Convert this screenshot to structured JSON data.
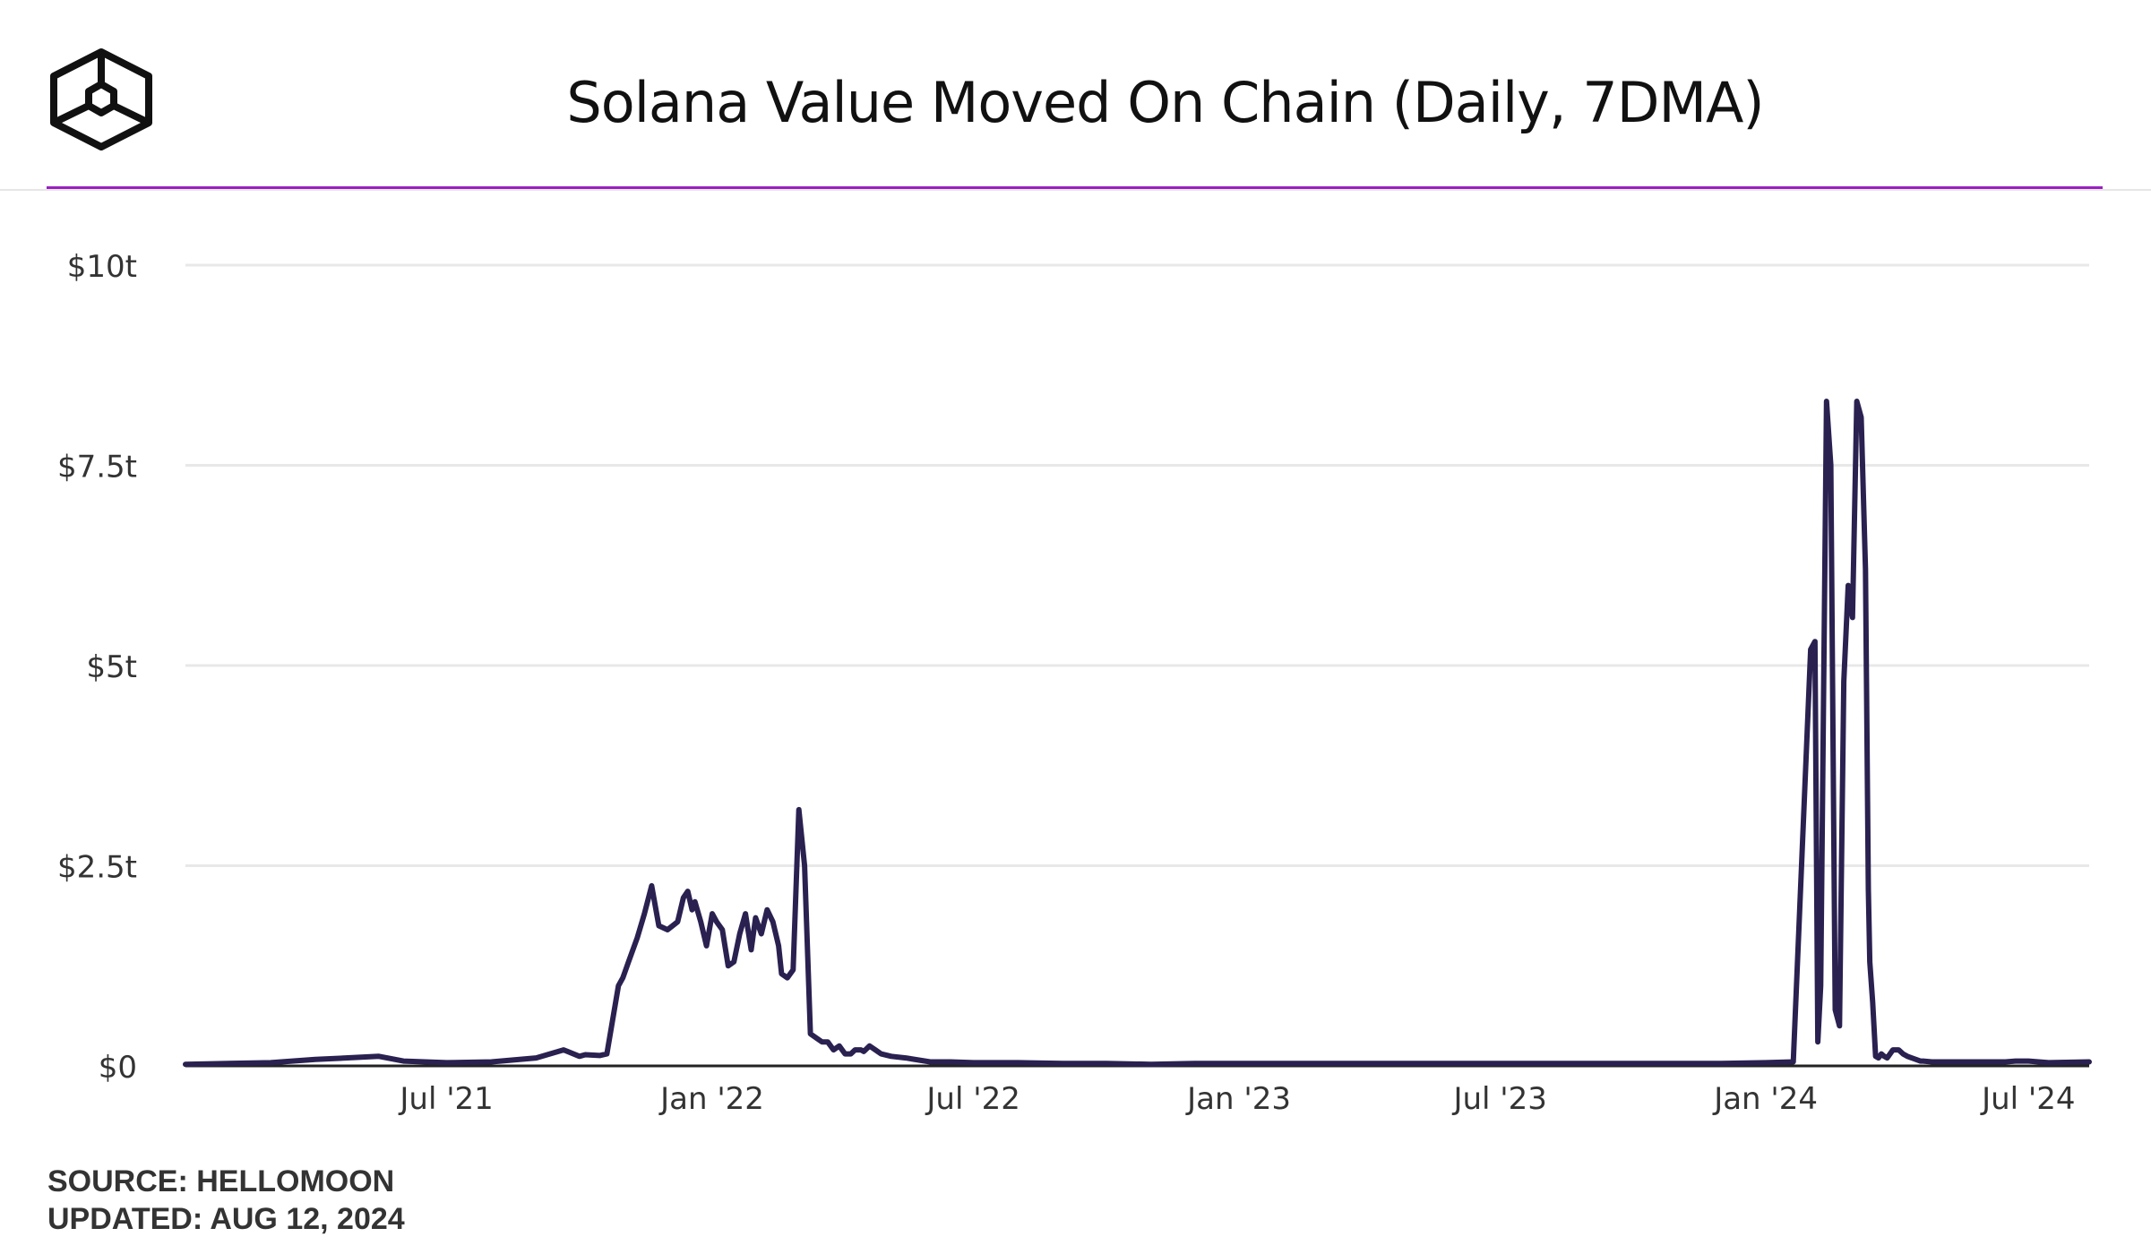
{
  "header": {
    "title": "Solana Value Moved On Chain (Daily, 7DMA)",
    "logo_icon": "cube-logo-icon"
  },
  "footer": {
    "source": "SOURCE: HELLOMOON",
    "updated": "UPDATED: AUG 12, 2024"
  },
  "colors": {
    "accent_line": "#9b1fc4",
    "series": "#2a2150",
    "grid": "#e8e8e8",
    "axis": "#222222",
    "text": "#111111",
    "footer_text": "#333333"
  },
  "chart_data": {
    "type": "line",
    "title": "Solana Value Moved On Chain (Daily, 7DMA)",
    "xlabel": "",
    "ylabel": "",
    "x_range": [
      "2021-01-01",
      "2024-08-12"
    ],
    "ylim": [
      0,
      10
    ],
    "y_unit": "trillion USD",
    "y_ticks": [
      {
        "value": 0,
        "label": "$0"
      },
      {
        "value": 2.5,
        "label": "$2.5t"
      },
      {
        "value": 5,
        "label": "$5t"
      },
      {
        "value": 7.5,
        "label": "$7.5t"
      },
      {
        "value": 10,
        "label": "$10t"
      }
    ],
    "x_ticks": [
      {
        "date": "2021-07-01",
        "label": "Jul '21"
      },
      {
        "date": "2022-01-01",
        "label": "Jan '22"
      },
      {
        "date": "2022-07-01",
        "label": "Jul '22"
      },
      {
        "date": "2023-01-01",
        "label": "Jan '23"
      },
      {
        "date": "2023-07-01",
        "label": "Jul '23"
      },
      {
        "date": "2024-01-01",
        "label": "Jan '24"
      },
      {
        "date": "2024-07-01",
        "label": "Jul '24"
      }
    ],
    "grid": true,
    "legend": "none",
    "series": [
      {
        "x": [
          "2021-01-01",
          "2021-03-01",
          "2021-04-01",
          "2021-05-15",
          "2021-06-01",
          "2021-07-01",
          "2021-08-01",
          "2021-09-01",
          "2021-09-20",
          "2021-10-01",
          "2021-10-05",
          "2021-10-15",
          "2021-10-20",
          "2021-10-28",
          "2021-10-31",
          "2021-11-04",
          "2021-11-10",
          "2021-11-15",
          "2021-11-20",
          "2021-11-25",
          "2021-12-01",
          "2021-12-08",
          "2021-12-12",
          "2021-12-15",
          "2021-12-18",
          "2021-12-20",
          "2021-12-24",
          "2021-12-28",
          "2022-01-01",
          "2022-01-04",
          "2022-01-08",
          "2022-01-12",
          "2022-01-16",
          "2022-01-20",
          "2022-01-24",
          "2022-01-28",
          "2022-01-31",
          "2022-02-04",
          "2022-02-08",
          "2022-02-12",
          "2022-02-16",
          "2022-02-18",
          "2022-02-22",
          "2022-02-26",
          "2022-03-02",
          "2022-03-06",
          "2022-03-10",
          "2022-03-14",
          "2022-03-18",
          "2022-03-22",
          "2022-03-26",
          "2022-03-30",
          "2022-04-03",
          "2022-04-07",
          "2022-04-10",
          "2022-04-14",
          "2022-04-16",
          "2022-04-20",
          "2022-04-24",
          "2022-04-28",
          "2022-05-05",
          "2022-05-15",
          "2022-06-01",
          "2022-06-15",
          "2022-07-01",
          "2022-07-15",
          "2022-08-01",
          "2022-09-01",
          "2022-10-01",
          "2022-11-01",
          "2022-12-01",
          "2023-01-01",
          "2023-07-01",
          "2023-12-01",
          "2024-01-01",
          "2024-01-20",
          "2024-02-01",
          "2024-02-04",
          "2024-02-06",
          "2024-02-08",
          "2024-02-12",
          "2024-02-15",
          "2024-02-18",
          "2024-02-21",
          "2024-02-24",
          "2024-02-27",
          "2024-03-01",
          "2024-03-04",
          "2024-03-07",
          "2024-03-10",
          "2024-03-12",
          "2024-03-13",
          "2024-03-15",
          "2024-03-17",
          "2024-03-19",
          "2024-03-21",
          "2024-03-23",
          "2024-03-25",
          "2024-03-29",
          "2024-04-02",
          "2024-04-05",
          "2024-04-08",
          "2024-04-11",
          "2024-04-14",
          "2024-04-17",
          "2024-04-19",
          "2024-04-25",
          "2024-05-01",
          "2024-05-10",
          "2024-05-20",
          "2024-06-01",
          "2024-06-15",
          "2024-06-22",
          "2024-07-01",
          "2024-07-15",
          "2024-08-12"
        ],
        "y": [
          0.02,
          0.04,
          0.08,
          0.12,
          0.06,
          0.04,
          0.05,
          0.1,
          0.2,
          0.12,
          0.14,
          0.13,
          0.15,
          1.0,
          1.1,
          1.3,
          1.6,
          1.9,
          2.25,
          1.75,
          1.7,
          1.8,
          2.1,
          2.18,
          1.95,
          2.05,
          1.8,
          1.5,
          1.9,
          1.8,
          1.7,
          1.25,
          1.3,
          1.65,
          1.9,
          1.45,
          1.85,
          1.65,
          1.95,
          1.8,
          1.5,
          1.15,
          1.1,
          1.2,
          3.2,
          2.5,
          0.4,
          0.35,
          0.3,
          0.3,
          0.2,
          0.25,
          0.15,
          0.15,
          0.2,
          0.2,
          0.18,
          0.25,
          0.2,
          0.15,
          0.12,
          0.1,
          0.05,
          0.05,
          0.04,
          0.04,
          0.04,
          0.03,
          0.03,
          0.02,
          0.03,
          0.03,
          0.03,
          0.03,
          0.04,
          0.05,
          5.2,
          5.3,
          0.3,
          1.0,
          8.3,
          7.5,
          0.7,
          0.5,
          4.8,
          6.0,
          5.6,
          8.3,
          8.1,
          6.2,
          2.2,
          1.3,
          0.8,
          0.12,
          0.1,
          0.15,
          0.12,
          0.1,
          0.2,
          0.2,
          0.15,
          0.12,
          0.1,
          0.08,
          0.06,
          0.06,
          0.05,
          0.05,
          0.05,
          0.05,
          0.05,
          0.05,
          0.06,
          0.06,
          0.04,
          0.05
        ]
      }
    ]
  }
}
